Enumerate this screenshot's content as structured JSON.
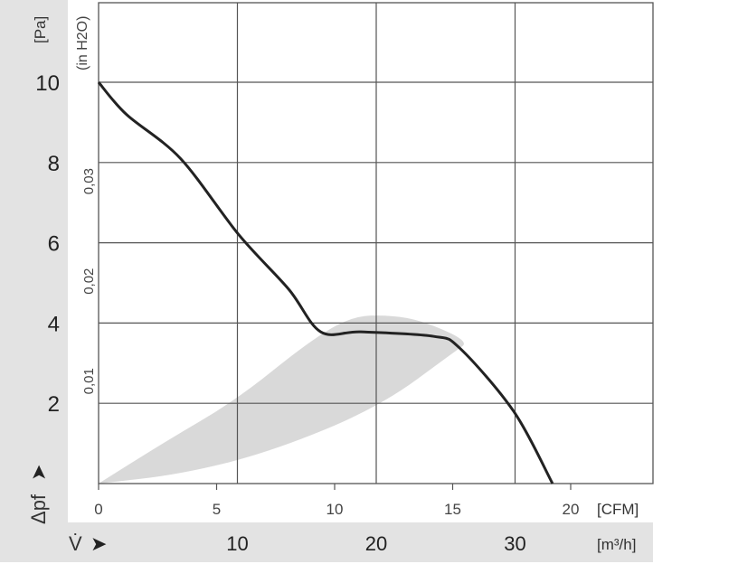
{
  "chart_data": {
    "type": "line",
    "ylabel": "[Pa]",
    "ylabel_secondary": "(in H2O)",
    "y_axis_symbol": "Δpf",
    "xlabel_primary": "[m³/h]",
    "xlabel_secondary": "[CFM]",
    "x_axis_symbol": "V̇",
    "xlim": [
      0,
      40
    ],
    "ylim": [
      0,
      12
    ],
    "y_ticks": [
      2,
      4,
      6,
      8,
      10
    ],
    "y_ticks_secondary": [
      "0,01",
      "0,02",
      "0,03"
    ],
    "y_ticks_secondary_values": [
      0.01,
      0.02,
      0.03
    ],
    "x_ticks": [
      10,
      20,
      30
    ],
    "x_ticks_cfm": [
      0,
      5,
      10,
      15,
      20
    ],
    "grid": true,
    "series": [
      {
        "x": [
          0,
          2,
          5.9,
          10.1,
          13.7,
          16,
          18.9,
          24.1,
          26,
          29.9,
          32.7
        ],
        "y": [
          10,
          9.2,
          8.1,
          6.2,
          4.84,
          3.78,
          3.78,
          3.67,
          3.38,
          1.8,
          0
        ]
      }
    ],
    "shaded_region": {
      "upper": {
        "x": [
          0,
          4.6,
          10,
          15,
          18.2,
          21,
          23.4,
          26.7
        ],
        "y": [
          0,
          1.0,
          2.1,
          3.5,
          4.17,
          4.2,
          4.05,
          3.54
        ]
      },
      "lower": {
        "x": [
          25.7,
          20.2,
          12.4,
          5.9,
          0
        ],
        "y": [
          3.3,
          1.9,
          0.79,
          0.23,
          0
        ]
      }
    },
    "colors": {
      "curve": "#222222",
      "shade": "#d9d9d9",
      "band": "#e3e3e3",
      "grid": "#555555"
    }
  }
}
